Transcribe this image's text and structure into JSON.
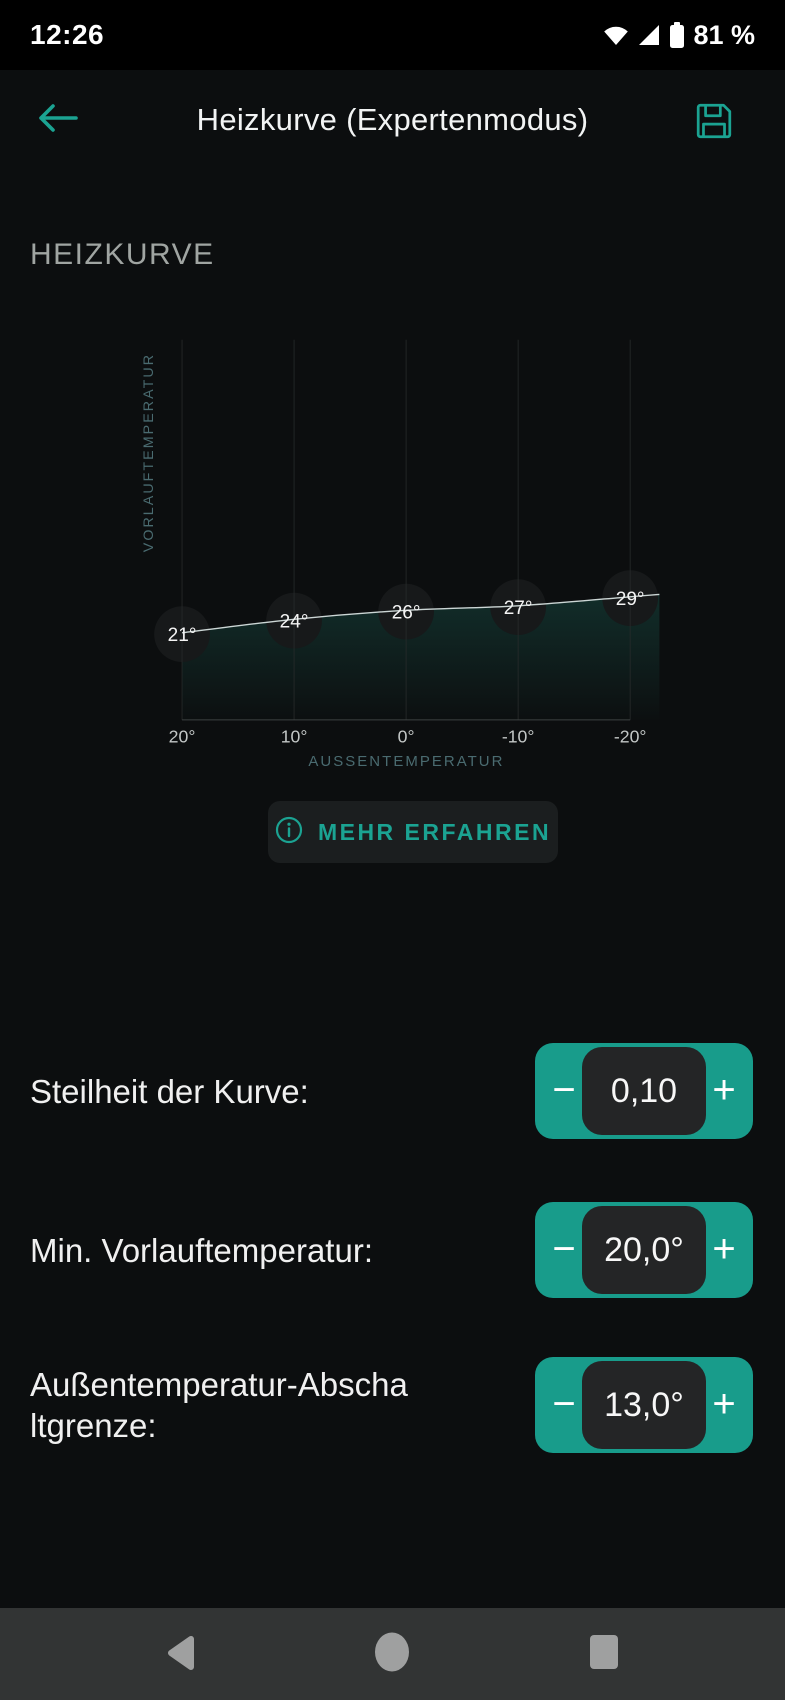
{
  "colors": {
    "accent": "#1BA392",
    "stepper_teal": "#189C8B",
    "page_bg": "#0C0E0F",
    "status_bar_bg": "#000000",
    "nav_bar_bg": "#323434",
    "chart_fill_teal": "#26A08C",
    "chart_line": "#CCD6D5",
    "axis_label_color": "#4A6B70",
    "tick_label_color": "#C3C7C6"
  },
  "status_bar": {
    "time": "12:26",
    "battery_percent": "81 %"
  },
  "header": {
    "title": "Heizkurve (Expertenmodus)"
  },
  "section_title": "HEIZKURVE",
  "chart_data": {
    "type": "line",
    "title": "HEIZKURVE",
    "xlabel": "AUSSENTEMPERATUR",
    "ylabel": "VORLAUFTEMPERATUR",
    "x_tick_labels": [
      "20°",
      "10°",
      "0°",
      "-10°",
      "-20°"
    ],
    "x_values": [
      20,
      10,
      0,
      -10,
      -20
    ],
    "x_axis_reversed": true,
    "grid": "vertical-only",
    "series": [
      {
        "name": "Heizkurve",
        "values": [
          21,
          24,
          26,
          27,
          29
        ]
      }
    ],
    "point_labels": [
      "21°",
      "24°",
      "26°",
      "27°",
      "29°"
    ],
    "learn_more_label": "MEHR ERFAHREN"
  },
  "settings": {
    "minus": "−",
    "plus": "+",
    "rows": [
      {
        "label": "Steilheit der Kurve:",
        "value": "0,10"
      },
      {
        "label": "Min. Vorlauftemperatur:",
        "value": "20,0°"
      },
      {
        "label": "Außentemperatur-Abscha\nltgrenze:",
        "value": "13,0°"
      }
    ]
  }
}
